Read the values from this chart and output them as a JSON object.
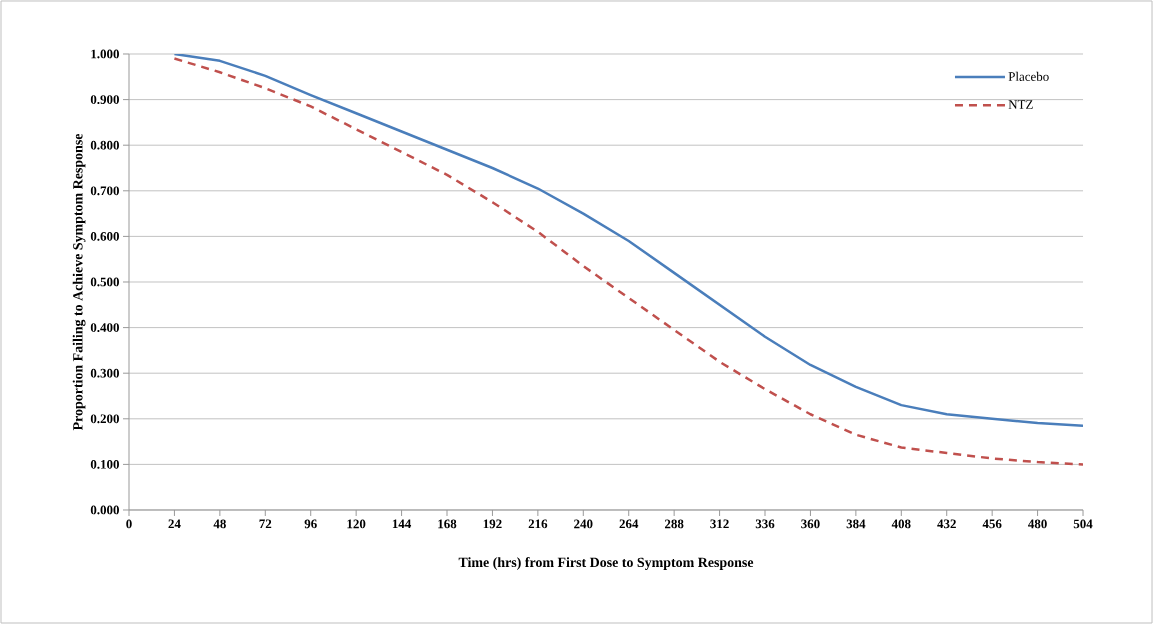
{
  "chart_data": {
    "type": "line",
    "xlabel": "Time (hrs) from First Dose to Symptom Response",
    "ylabel": "Proportion Failing to Achieve Symptom Response",
    "x": [
      24,
      48,
      72,
      96,
      120,
      144,
      168,
      192,
      216,
      240,
      264,
      288,
      312,
      336,
      360,
      384,
      408,
      432,
      456,
      480,
      504
    ],
    "series": [
      {
        "name": "Placebo",
        "color": "#4a7ebb",
        "line_style": "solid",
        "values": [
          1.0,
          0.985,
          0.952,
          0.91,
          0.87,
          0.83,
          0.79,
          0.75,
          0.705,
          0.65,
          0.59,
          0.52,
          0.45,
          0.38,
          0.318,
          0.27,
          0.23,
          0.21,
          0.2,
          0.191,
          0.185
        ]
      },
      {
        "name": "NTZ",
        "color": "#c0504d",
        "line_style": "dashed",
        "values": [
          0.99,
          0.96,
          0.925,
          0.885,
          0.835,
          0.785,
          0.735,
          0.675,
          0.61,
          0.535,
          0.465,
          0.395,
          0.325,
          0.265,
          0.21,
          0.165,
          0.137,
          0.125,
          0.113,
          0.105,
          0.1
        ]
      }
    ],
    "xlim": [
      0,
      504
    ],
    "xticks": [
      0,
      24,
      48,
      72,
      96,
      120,
      144,
      168,
      192,
      216,
      240,
      264,
      288,
      312,
      336,
      360,
      384,
      408,
      432,
      456,
      480,
      504
    ],
    "ylim": [
      0,
      1
    ],
    "yticks": [
      {
        "value": 0,
        "label": "0.000"
      },
      {
        "value": 0.1,
        "label": "0.100"
      },
      {
        "value": 0.2,
        "label": "0.200"
      },
      {
        "value": 0.3,
        "label": "0.300"
      },
      {
        "value": 0.4,
        "label": "0.400"
      },
      {
        "value": 0.5,
        "label": "0.500"
      },
      {
        "value": 0.6,
        "label": "0.600"
      },
      {
        "value": 0.7,
        "label": "0.700"
      },
      {
        "value": 0.8,
        "label": "0.800"
      },
      {
        "value": 0.9,
        "label": "0.900"
      },
      {
        "value": 1,
        "label": "1.000"
      }
    ],
    "grid": "y",
    "legend": "top right",
    "marker": "none"
  }
}
